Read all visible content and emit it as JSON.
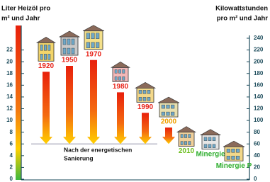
{
  "chart_data": {
    "type": "arrow-bar",
    "y_label": [
      "Liter Heizöl pro",
      "m² und Jahr"
    ],
    "y2_label": [
      "Kilowattstunden",
      "pro m² und Jahr"
    ],
    "categories": [
      "1920",
      "1950",
      "1970",
      "1980",
      "1990",
      "2000",
      "2010",
      "Minergie",
      "Minergie P"
    ],
    "values": [
      19.5,
      20.5,
      21.5,
      16,
      12.5,
      10,
      5,
      4.5,
      2.5
    ],
    "label_colors": [
      "#e8251b",
      "#e8251b",
      "#e8251b",
      "#e8251b",
      "#e8251b",
      "#f0a000",
      "#6cbf1e",
      "#2eae2e",
      "#2eae2e"
    ],
    "renovated_level": 6,
    "annotation": [
      "Nach der energetischen",
      "Sanierung"
    ],
    "ylim": [
      0,
      24
    ],
    "yticks": [
      0,
      2,
      4,
      6,
      8,
      10,
      12,
      14,
      16,
      18,
      20,
      22
    ],
    "y2lim": [
      0,
      240
    ],
    "y2ticks": [
      0,
      20,
      40,
      60,
      80,
      100,
      120,
      140,
      160,
      180,
      200,
      220,
      240
    ]
  }
}
